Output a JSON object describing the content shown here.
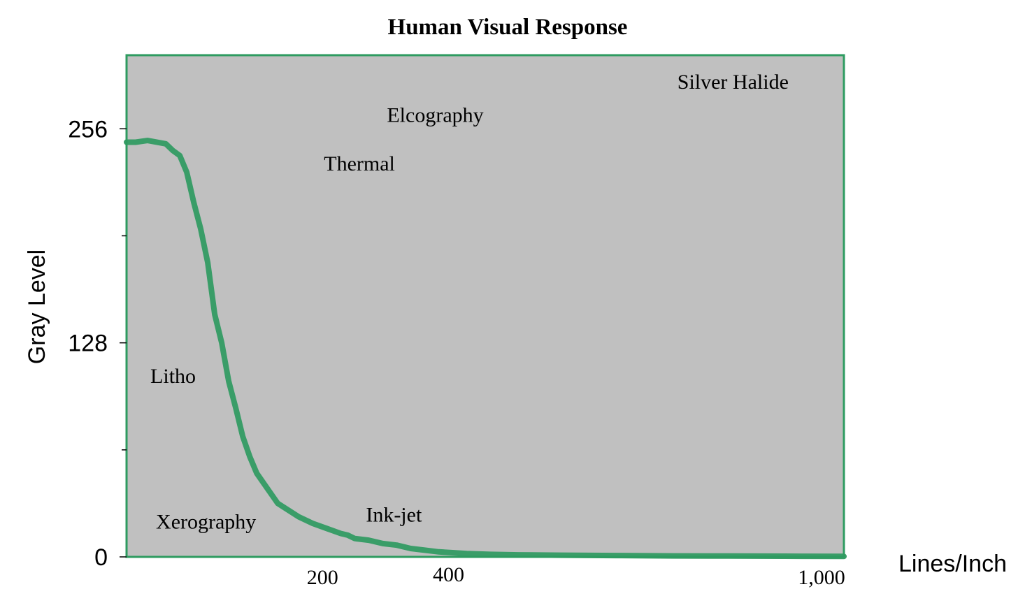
{
  "chart_data": {
    "type": "line",
    "title": "Human Visual Response",
    "xlabel": "Lines/Inch",
    "ylabel": "Gray Level",
    "xlim": [
      0,
      1025
    ],
    "ylim": [
      0,
      300
    ],
    "x_ticks": [
      {
        "value": 280,
        "label": "200"
      },
      {
        "value": 460,
        "label": "400"
      },
      {
        "value": 993,
        "label": "1,000"
      }
    ],
    "y_ticks": [
      {
        "value": 0,
        "label": "0",
        "major": true
      },
      {
        "value": 64,
        "label": "",
        "major": false
      },
      {
        "value": 128,
        "label": "128",
        "major": true
      },
      {
        "value": 192,
        "label": "",
        "major": false
      },
      {
        "value": 256,
        "label": "256",
        "major": true
      }
    ],
    "grid": false,
    "background": "#c0c0c0",
    "frame_color": "#2e9b60",
    "line_color": "#3a9d68",
    "series": [
      {
        "x": [
          0,
          13,
          30,
          56,
          66,
          76,
          86,
          96,
          106,
          116,
          126,
          136,
          146,
          156,
          166,
          176,
          186,
          196,
          216,
          246,
          266,
          286,
          306,
          316,
          326,
          346,
          366,
          386,
          406,
          426,
          446,
          466,
          486,
          520,
          560,
          620,
          700,
          780,
          860,
          940,
          1025
        ],
        "y": [
          248,
          248,
          249,
          247,
          243,
          240,
          230,
          212,
          196,
          176,
          145,
          128,
          105,
          89,
          72,
          60,
          50,
          44,
          32,
          24,
          20,
          17,
          14,
          13,
          11,
          10,
          8,
          7,
          5,
          4,
          3,
          2.5,
          2,
          1.5,
          1.2,
          1,
          0.8,
          0.6,
          0.5,
          0.4,
          0.3
        ]
      }
    ],
    "annotations": [
      {
        "text": "Silver Halide",
        "x": 787,
        "y": 280
      },
      {
        "text": "Elcography",
        "x": 372,
        "y": 260
      },
      {
        "text": "Thermal",
        "x": 282,
        "y": 231
      },
      {
        "text": "Litho",
        "x": 34,
        "y": 104
      },
      {
        "text": "Ink-jet",
        "x": 342,
        "y": 21
      },
      {
        "text": "Xerography",
        "x": 42,
        "y": 17
      }
    ]
  }
}
